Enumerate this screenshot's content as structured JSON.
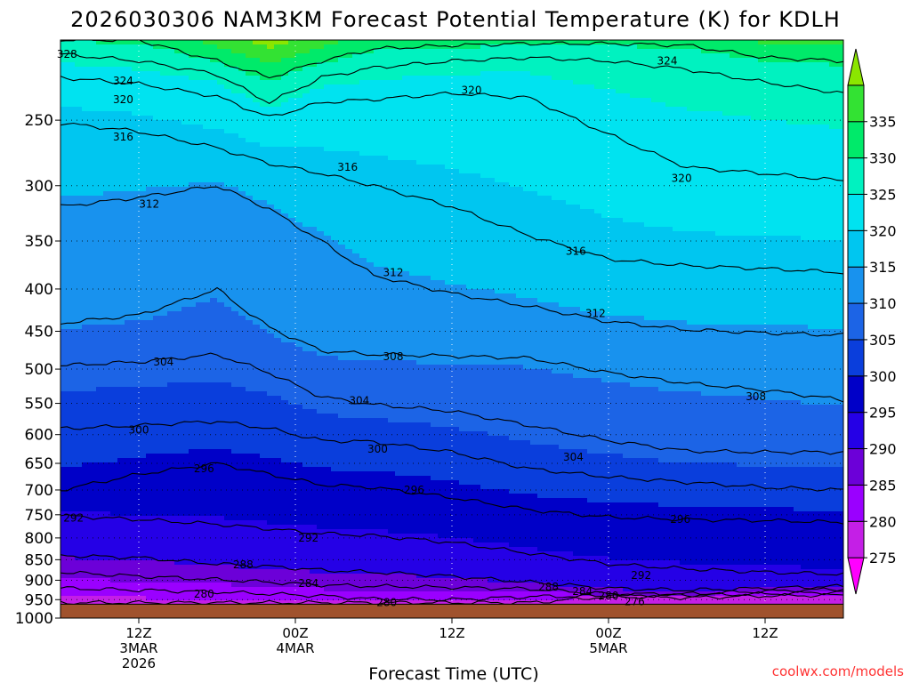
{
  "chart_data": {
    "type": "heatmap",
    "title": "2026030306 NAM3KM Forecast Potential Temperature (K) for KDLH",
    "xlabel": "Forecast Time (UTC)",
    "ylabel": "",
    "x_ticks": [
      {
        "hour": 6,
        "lines": [
          "12Z",
          "3MAR",
          "2026"
        ]
      },
      {
        "hour": 18,
        "lines": [
          "00Z",
          "4MAR"
        ]
      },
      {
        "hour": 30,
        "lines": [
          "12Z"
        ]
      },
      {
        "hour": 42,
        "lines": [
          "00Z",
          "5MAR"
        ]
      },
      {
        "hour": 54,
        "lines": [
          "12Z"
        ]
      }
    ],
    "xlim": [
      0,
      60
    ],
    "y_ticks": [
      "250",
      "300",
      "350",
      "400",
      "450",
      "500",
      "550",
      "600",
      "650",
      "700",
      "750",
      "800",
      "850",
      "900",
      "950",
      "1000"
    ],
    "ylim": [
      200,
      1000
    ],
    "surface_pressure_hpa": 962,
    "colorbar": {
      "levels": [
        275,
        280,
        285,
        290,
        295,
        300,
        305,
        310,
        315,
        320,
        325,
        330,
        335
      ],
      "colors": [
        "#ff00ff",
        "#c41fe6",
        "#9a00ff",
        "#6c00d8",
        "#2500e6",
        "#0000c8",
        "#0a3edc",
        "#1c64e6",
        "#1892ee",
        "#00c6f0",
        "#00e3f0",
        "#00f2c0",
        "#00ea6a",
        "#33e233",
        "#8be600"
      ]
    },
    "series": [
      {
        "name": "328",
        "theta": 328,
        "x": [
          0,
          6,
          12,
          16,
          20,
          24,
          30,
          36,
          42,
          48,
          54,
          60
        ],
        "p": [
          200,
          200,
          212,
          222,
          212,
          205,
          203,
          202,
          202,
          203,
          210,
          212
        ]
      },
      {
        "name": "324",
        "theta": 324,
        "x": [
          0,
          6,
          12,
          16,
          20,
          24,
          30,
          36,
          42,
          48,
          54,
          60
        ],
        "p": [
          208,
          212,
          220,
          238,
          222,
          216,
          212,
          210,
          212,
          217,
          225,
          232
        ]
      },
      {
        "name": "320",
        "theta": 320,
        "x": [
          0,
          6,
          12,
          16,
          20,
          24,
          30,
          36,
          42,
          48,
          54,
          60
        ],
        "p": [
          222,
          226,
          234,
          248,
          238,
          236,
          232,
          235,
          260,
          285,
          290,
          296
        ]
      },
      {
        "name": "316",
        "theta": 316,
        "x": [
          0,
          6,
          12,
          16,
          20,
          24,
          30,
          36,
          42,
          48,
          54,
          60
        ],
        "p": [
          252,
          258,
          270,
          282,
          290,
          300,
          318,
          345,
          368,
          375,
          378,
          382
        ]
      },
      {
        "name": "312",
        "theta": 312,
        "x": [
          0,
          6,
          12,
          16,
          20,
          24,
          30,
          36,
          42,
          48,
          54,
          60
        ],
        "p": [
          318,
          310,
          300,
          320,
          350,
          385,
          405,
          420,
          438,
          448,
          452,
          455
        ]
      },
      {
        "name": "308",
        "theta": 308,
        "x": [
          0,
          6,
          12,
          16,
          20,
          24,
          30,
          36,
          42,
          48,
          54,
          60
        ],
        "p": [
          440,
          430,
          400,
          445,
          475,
          480,
          482,
          485,
          505,
          520,
          530,
          545
        ]
      },
      {
        "name": "304",
        "theta": 304,
        "x": [
          0,
          6,
          12,
          16,
          20,
          24,
          30,
          36,
          42,
          48,
          54,
          60
        ],
        "p": [
          495,
          490,
          480,
          505,
          540,
          552,
          562,
          585,
          610,
          628,
          630,
          630
        ]
      },
      {
        "name": "300",
        "theta": 300,
        "x": [
          0,
          6,
          12,
          16,
          20,
          24,
          30,
          36,
          42,
          48,
          54,
          60
        ],
        "p": [
          590,
          585,
          578,
          590,
          610,
          612,
          630,
          660,
          675,
          685,
          695,
          700
        ]
      },
      {
        "name": "296",
        "theta": 296,
        "x": [
          0,
          6,
          12,
          16,
          20,
          24,
          30,
          36,
          42,
          48,
          54,
          60
        ],
        "p": [
          700,
          670,
          650,
          670,
          690,
          695,
          715,
          740,
          755,
          760,
          762,
          766
        ]
      },
      {
        "name": "292",
        "theta": 292,
        "x": [
          0,
          6,
          12,
          16,
          20,
          24,
          30,
          36,
          42,
          48,
          54,
          60
        ],
        "p": [
          752,
          760,
          770,
          780,
          790,
          795,
          810,
          835,
          860,
          872,
          880,
          885
        ]
      },
      {
        "name": "288",
        "theta": 288,
        "x": [
          0,
          6,
          12,
          16,
          20,
          24,
          30,
          36,
          42,
          48,
          54,
          60
        ],
        "p": [
          840,
          845,
          860,
          866,
          875,
          880,
          890,
          905,
          920,
          925,
          920,
          915
        ]
      },
      {
        "name": "284",
        "theta": 284,
        "x": [
          0,
          6,
          12,
          16,
          20,
          24,
          30,
          36,
          42,
          48,
          54,
          60
        ],
        "p": [
          880,
          890,
          898,
          905,
          912,
          915,
          918,
          922,
          935,
          935,
          928,
          922
        ]
      },
      {
        "name": "280",
        "theta": 280,
        "x": [
          0,
          6,
          12,
          16,
          20,
          24,
          30,
          36,
          42,
          48,
          54,
          60
        ],
        "p": [
          920,
          925,
          930,
          935,
          940,
          948,
          950,
          942,
          940,
          938,
          935,
          930
        ]
      },
      {
        "name": "276",
        "theta": 276,
        "x": [
          0,
          6,
          12,
          16,
          20,
          24,
          30,
          36,
          42,
          48,
          54,
          60
        ],
        "p": [
          958,
          958,
          958,
          958,
          958,
          958,
          958,
          958,
          942,
          945,
          940,
          938
        ]
      }
    ],
    "contour_labels": [
      {
        "text": "328",
        "x": 0.5,
        "p": 208
      },
      {
        "text": "324",
        "x": 4.8,
        "p": 224
      },
      {
        "text": "320",
        "x": 4.8,
        "p": 236
      },
      {
        "text": "316",
        "x": 4.8,
        "p": 262
      },
      {
        "text": "312",
        "x": 6.8,
        "p": 316
      },
      {
        "text": "304",
        "x": 7.9,
        "p": 490
      },
      {
        "text": "300",
        "x": 6.0,
        "p": 592
      },
      {
        "text": "296",
        "x": 11.0,
        "p": 660
      },
      {
        "text": "292",
        "x": 1.0,
        "p": 757
      },
      {
        "text": "288",
        "x": 14.0,
        "p": 862
      },
      {
        "text": "280",
        "x": 11.0,
        "p": 935
      },
      {
        "text": "292",
        "x": 19.0,
        "p": 800
      },
      {
        "text": "284",
        "x": 19.0,
        "p": 908
      },
      {
        "text": "280",
        "x": 25.0,
        "p": 958
      },
      {
        "text": "316",
        "x": 22.0,
        "p": 285
      },
      {
        "text": "312",
        "x": 25.5,
        "p": 382
      },
      {
        "text": "308",
        "x": 25.5,
        "p": 483
      },
      {
        "text": "304",
        "x": 22.9,
        "p": 546
      },
      {
        "text": "300",
        "x": 24.3,
        "p": 625
      },
      {
        "text": "296",
        "x": 27.1,
        "p": 700
      },
      {
        "text": "320",
        "x": 31.5,
        "p": 230
      },
      {
        "text": "288",
        "x": 37.4,
        "p": 917
      },
      {
        "text": "284",
        "x": 40.0,
        "p": 928
      },
      {
        "text": "280",
        "x": 42.0,
        "p": 940
      },
      {
        "text": "276",
        "x": 44.0,
        "p": 955
      },
      {
        "text": "292",
        "x": 44.5,
        "p": 888
      },
      {
        "text": "304",
        "x": 39.3,
        "p": 639
      },
      {
        "text": "312",
        "x": 41.0,
        "p": 428
      },
      {
        "text": "316",
        "x": 39.5,
        "p": 360
      },
      {
        "text": "296",
        "x": 47.5,
        "p": 760
      },
      {
        "text": "324",
        "x": 46.5,
        "p": 212
      },
      {
        "text": "320",
        "x": 47.6,
        "p": 294
      },
      {
        "text": "308",
        "x": 53.3,
        "p": 540
      }
    ]
  },
  "credit": {
    "text": "coolwx.com/models",
    "color": "#ff3333"
  }
}
